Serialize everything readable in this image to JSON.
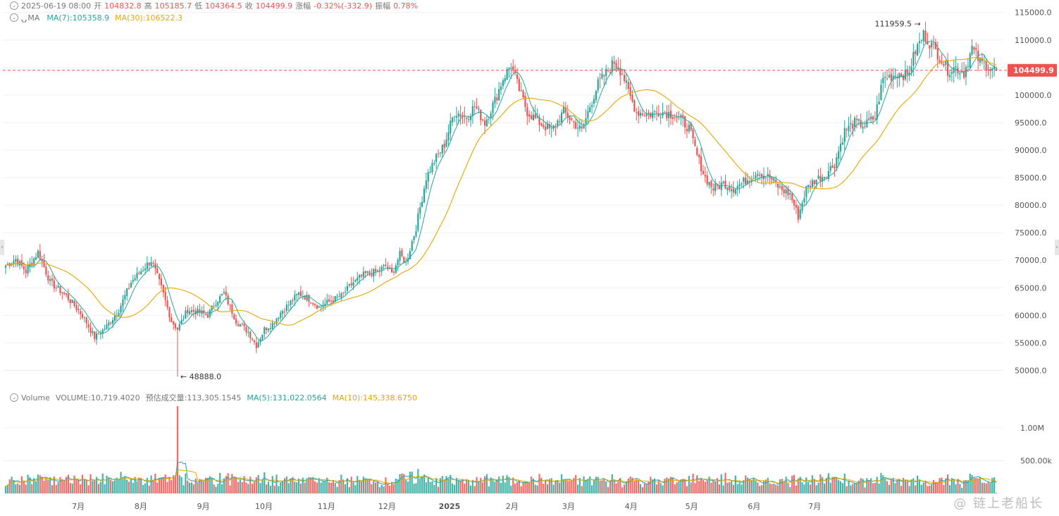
{
  "ohlc_bar": {
    "date": "2025-06-19 08:00",
    "open_label": "开",
    "open": "104832.8",
    "high_label": "高",
    "high": "105185.7",
    "low_label": "低",
    "low": "104364.5",
    "close_label": "收",
    "close": "104499.9",
    "change_label": "涨幅",
    "change": "-0.32%(-332.9)",
    "amplitude_label": "振幅",
    "amplitude": "0.78%"
  },
  "ma_legend": {
    "name": "MA",
    "ma7": "MA(7):105358.9",
    "ma30": "MA(30):106522.3"
  },
  "volume_legend": {
    "name": "Volume",
    "volume": "VOLUME:10,719.4020",
    "estimated": "预估成交量:113,305.1545",
    "ma5": "MA(5):131,022.0564",
    "ma10": "MA(10):145,338.6750"
  },
  "annotations": {
    "high_label": "111959.5 →",
    "low_label": "← 48888.0"
  },
  "last_price_tag": "104499.9",
  "watermark": "@ 链上老船长",
  "colors": {
    "up": "#26a69a",
    "down": "#ef5350",
    "ma7": "#26a69a",
    "ma30": "#e6a700",
    "grid": "#f0f0f0"
  },
  "icons": [
    "chevron-down-icon",
    "bell-icon",
    "watermark-logo"
  ],
  "chart_data": {
    "type": "candlestick",
    "price_axis": {
      "ticks": [
        "115000.0",
        "110000.0",
        "105000.0",
        "100000.0",
        "95000.0",
        "90000.0",
        "85000.0",
        "80000.0",
        "75000.0",
        "70000.0",
        "65000.0",
        "60000.0",
        "55000.0",
        "50000.0"
      ],
      "ylim": [
        47500,
        116500
      ]
    },
    "volume_axis": {
      "ticks": [
        "1.00M",
        "500.00k"
      ],
      "ylim": [
        0,
        1450000
      ]
    },
    "x_ticks": [
      "7月",
      "8月",
      "9月",
      "10月",
      "11月",
      "12月",
      "2025",
      "2月",
      "3月",
      "4月",
      "5月",
      "6月",
      "7月"
    ],
    "anchors_close": [
      [
        0,
        69000
      ],
      [
        5,
        70200
      ],
      [
        10,
        68000
      ],
      [
        16,
        71500
      ],
      [
        22,
        66000
      ],
      [
        30,
        63500
      ],
      [
        38,
        60000
      ],
      [
        44,
        56000
      ],
      [
        50,
        58000
      ],
      [
        56,
        61000
      ],
      [
        62,
        66000
      ],
      [
        68,
        68500
      ],
      [
        72,
        70000
      ],
      [
        77,
        65000
      ],
      [
        82,
        59000
      ],
      [
        85,
        57500
      ],
      [
        90,
        61000
      ],
      [
        96,
        60500
      ],
      [
        100,
        60000
      ],
      [
        104,
        62500
      ],
      [
        108,
        64000
      ],
      [
        114,
        59000
      ],
      [
        120,
        57000
      ],
      [
        124,
        54500
      ],
      [
        128,
        57500
      ],
      [
        132,
        58500
      ],
      [
        136,
        60500
      ],
      [
        140,
        62000
      ],
      [
        145,
        64000
      ],
      [
        150,
        63000
      ],
      [
        155,
        61500
      ],
      [
        160,
        62500
      ],
      [
        166,
        63500
      ],
      [
        172,
        66000
      ],
      [
        178,
        67500
      ],
      [
        184,
        68000
      ],
      [
        188,
        69000
      ],
      [
        191,
        67500
      ],
      [
        195,
        71000
      ],
      [
        198,
        69500
      ],
      [
        203,
        76000
      ],
      [
        208,
        85000
      ],
      [
        212,
        88000
      ],
      [
        217,
        91000
      ],
      [
        222,
        97000
      ],
      [
        228,
        96000
      ],
      [
        232,
        98000
      ],
      [
        237,
        95000
      ],
      [
        242,
        99000
      ],
      [
        246,
        103000
      ],
      [
        250,
        105500
      ],
      [
        253,
        102000
      ],
      [
        258,
        97000
      ],
      [
        264,
        95000
      ],
      [
        270,
        93500
      ],
      [
        276,
        97000
      ],
      [
        281,
        95000
      ],
      [
        285,
        93500
      ],
      [
        289,
        98000
      ],
      [
        293,
        102000
      ],
      [
        297,
        104000
      ],
      [
        301,
        106000
      ],
      [
        305,
        104000
      ],
      [
        308,
        100500
      ],
      [
        312,
        97000
      ],
      [
        318,
        96500
      ],
      [
        324,
        97000
      ],
      [
        330,
        96500
      ],
      [
        334,
        95500
      ],
      [
        338,
        94000
      ],
      [
        342,
        89000
      ],
      [
        346,
        85000
      ],
      [
        350,
        83000
      ],
      [
        355,
        84000
      ],
      [
        360,
        83000
      ],
      [
        366,
        84500
      ],
      [
        372,
        86000
      ],
      [
        378,
        85000
      ],
      [
        383,
        83000
      ],
      [
        388,
        82000
      ],
      [
        392,
        78000
      ],
      [
        396,
        83000
      ],
      [
        400,
        84500
      ],
      [
        405,
        85500
      ],
      [
        410,
        87500
      ],
      [
        415,
        93500
      ],
      [
        420,
        95000
      ],
      [
        425,
        94500
      ],
      [
        430,
        96000
      ],
      [
        434,
        103000
      ],
      [
        438,
        103500
      ],
      [
        442,
        104000
      ],
      [
        446,
        103500
      ],
      [
        450,
        108000
      ],
      [
        454,
        111000
      ],
      [
        458,
        109000
      ],
      [
        462,
        107000
      ],
      [
        466,
        104500
      ],
      [
        470,
        105000
      ],
      [
        474,
        104000
      ],
      [
        478,
        108500
      ],
      [
        482,
        106000
      ],
      [
        486,
        105300
      ],
      [
        490,
        104500
      ]
    ],
    "ma7_last": 105358.9,
    "ma30_last": 106522.3,
    "annotated_high": 111959.5,
    "annotated_low": 48888.0,
    "last_close": 104499.9,
    "volume_latest": 10719.402,
    "volume_estimated": 113305.1545,
    "volume_ma5": 131022.0564,
    "volume_ma10": 145338.675
  }
}
